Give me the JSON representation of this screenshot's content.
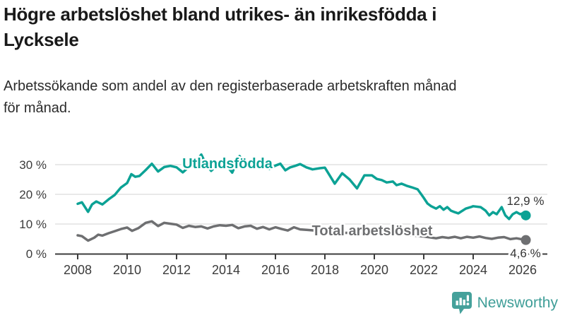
{
  "chart_data": {
    "type": "line",
    "title": "Högre arbetslöshet bland utrikes- än inrikesfödda i Lycksele",
    "title_lines": [
      "Högre arbetslöshet bland utrikes- än inrikesfödda i",
      "Lycksele"
    ],
    "subtitle": "Arbetssökande som andel av den registerbaserade arbetskraften månad för månad.",
    "subtitle_lines": [
      "Arbetssökande som andel av den registerbaserade arbetskraften månad",
      "för månad."
    ],
    "unit": "%",
    "xlim": [
      2007.1,
      2027.0
    ],
    "ylim": [
      0,
      35
    ],
    "grid": "horizontal",
    "grid_color": "#dcdcdc",
    "axis_color": "#3c3c3c",
    "x_ticks": [
      {
        "value": 2008,
        "label": "2008"
      },
      {
        "value": 2010,
        "label": "2010"
      },
      {
        "value": 2012,
        "label": "2012"
      },
      {
        "value": 2014,
        "label": "2014"
      },
      {
        "value": 2016,
        "label": "2016"
      },
      {
        "value": 2018,
        "label": "2018"
      },
      {
        "value": 2020,
        "label": "2020"
      },
      {
        "value": 2022,
        "label": "2022"
      },
      {
        "value": 2024,
        "label": "2024"
      },
      {
        "value": 2026,
        "label": "2026"
      }
    ],
    "y_ticks": [
      {
        "value": 0,
        "label": "0 %"
      },
      {
        "value": 10,
        "label": "10 %"
      },
      {
        "value": 20,
        "label": "20 %"
      },
      {
        "value": 30,
        "label": "30 %"
      }
    ],
    "series": [
      {
        "name": "Utlandsfödda",
        "color": "#0ca295",
        "end_value": 12.9,
        "end_label": "12,9 %",
        "points": [
          [
            2008.0,
            16.8
          ],
          [
            2008.17,
            17.3
          ],
          [
            2008.42,
            14.1
          ],
          [
            2008.58,
            16.6
          ],
          [
            2008.75,
            17.6
          ],
          [
            2009.0,
            16.6
          ],
          [
            2009.25,
            18.3
          ],
          [
            2009.5,
            19.8
          ],
          [
            2009.75,
            22.3
          ],
          [
            2010.0,
            23.8
          ],
          [
            2010.17,
            26.8
          ],
          [
            2010.33,
            25.9
          ],
          [
            2010.5,
            26.2
          ],
          [
            2010.75,
            28.2
          ],
          [
            2011.0,
            30.3
          ],
          [
            2011.25,
            27.7
          ],
          [
            2011.5,
            29.2
          ],
          [
            2011.75,
            29.6
          ],
          [
            2012.0,
            29.1
          ],
          [
            2012.25,
            27.4
          ],
          [
            2012.5,
            29.2
          ],
          [
            2012.75,
            30.6
          ],
          [
            2013.0,
            33.4
          ],
          [
            2013.2,
            30.0
          ],
          [
            2013.4,
            27.9
          ],
          [
            2013.6,
            29.6
          ],
          [
            2013.8,
            30.2
          ],
          [
            2014.0,
            30.0
          ],
          [
            2014.25,
            27.3
          ],
          [
            2014.55,
            32.9
          ],
          [
            2014.7,
            30.8
          ],
          [
            2014.85,
            29.4
          ],
          [
            2015.0,
            30.1
          ],
          [
            2015.25,
            30.6
          ],
          [
            2015.5,
            29.4
          ],
          [
            2015.75,
            28.6
          ],
          [
            2016.0,
            29.7
          ],
          [
            2016.2,
            30.3
          ],
          [
            2016.4,
            28.1
          ],
          [
            2016.6,
            29.1
          ],
          [
            2016.8,
            29.6
          ],
          [
            2017.0,
            30.2
          ],
          [
            2017.25,
            29.1
          ],
          [
            2017.5,
            28.4
          ],
          [
            2017.8,
            28.8
          ],
          [
            2018.0,
            29.0
          ],
          [
            2018.4,
            23.6
          ],
          [
            2018.7,
            27.1
          ],
          [
            2019.0,
            25.0
          ],
          [
            2019.3,
            22.0
          ],
          [
            2019.6,
            26.4
          ],
          [
            2019.9,
            26.4
          ],
          [
            2020.1,
            25.2
          ],
          [
            2020.3,
            24.8
          ],
          [
            2020.5,
            24.0
          ],
          [
            2020.75,
            24.3
          ],
          [
            2020.9,
            23.1
          ],
          [
            2021.1,
            23.6
          ],
          [
            2021.3,
            22.9
          ],
          [
            2021.5,
            22.4
          ],
          [
            2021.75,
            21.7
          ],
          [
            2021.9,
            20.0
          ],
          [
            2022.0,
            18.8
          ],
          [
            2022.15,
            16.9
          ],
          [
            2022.3,
            16.0
          ],
          [
            2022.5,
            15.2
          ],
          [
            2022.65,
            16.0
          ],
          [
            2022.8,
            14.8
          ],
          [
            2022.95,
            15.7
          ],
          [
            2023.1,
            14.5
          ],
          [
            2023.25,
            14.0
          ],
          [
            2023.4,
            13.6
          ],
          [
            2023.7,
            15.2
          ],
          [
            2023.9,
            15.7
          ],
          [
            2024.0,
            16.0
          ],
          [
            2024.3,
            15.7
          ],
          [
            2024.5,
            14.5
          ],
          [
            2024.65,
            12.9
          ],
          [
            2024.8,
            14.0
          ],
          [
            2024.95,
            13.3
          ],
          [
            2025.15,
            15.7
          ],
          [
            2025.3,
            12.9
          ],
          [
            2025.45,
            11.7
          ],
          [
            2025.6,
            13.3
          ],
          [
            2025.75,
            14.0
          ],
          [
            2025.9,
            13.3
          ],
          [
            2026.0,
            13.6
          ],
          [
            2026.13,
            12.9
          ]
        ]
      },
      {
        "name": "Total arbetslöshet",
        "color": "#6e6f71",
        "end_value": 4.6,
        "end_label": "4,6 %",
        "points": [
          [
            2008.0,
            6.2
          ],
          [
            2008.17,
            5.9
          ],
          [
            2008.42,
            4.4
          ],
          [
            2008.67,
            5.4
          ],
          [
            2008.83,
            6.4
          ],
          [
            2009.0,
            6.1
          ],
          [
            2009.25,
            6.9
          ],
          [
            2009.5,
            7.6
          ],
          [
            2009.75,
            8.3
          ],
          [
            2010.0,
            8.8
          ],
          [
            2010.2,
            7.7
          ],
          [
            2010.45,
            8.6
          ],
          [
            2010.75,
            10.4
          ],
          [
            2011.0,
            10.9
          ],
          [
            2011.25,
            9.3
          ],
          [
            2011.5,
            10.4
          ],
          [
            2011.75,
            10.1
          ],
          [
            2012.0,
            9.8
          ],
          [
            2012.25,
            8.7
          ],
          [
            2012.5,
            9.4
          ],
          [
            2012.75,
            9.0
          ],
          [
            2013.0,
            9.2
          ],
          [
            2013.25,
            8.5
          ],
          [
            2013.5,
            9.2
          ],
          [
            2013.75,
            9.6
          ],
          [
            2014.0,
            9.4
          ],
          [
            2014.25,
            9.7
          ],
          [
            2014.5,
            8.6
          ],
          [
            2014.75,
            9.2
          ],
          [
            2015.0,
            9.4
          ],
          [
            2015.25,
            8.4
          ],
          [
            2015.5,
            9.0
          ],
          [
            2015.75,
            8.2
          ],
          [
            2016.0,
            8.9
          ],
          [
            2016.25,
            8.3
          ],
          [
            2016.5,
            7.8
          ],
          [
            2016.75,
            8.9
          ],
          [
            2017.0,
            8.2
          ],
          [
            2017.3,
            8.0
          ],
          [
            2017.6,
            7.8
          ],
          [
            2018.0,
            7.6
          ],
          [
            2018.5,
            7.1
          ],
          [
            2019.0,
            7.0
          ],
          [
            2019.5,
            6.8
          ],
          [
            2020.0,
            7.4
          ],
          [
            2020.5,
            7.2
          ],
          [
            2021.0,
            6.8
          ],
          [
            2021.5,
            6.2
          ],
          [
            2022.0,
            5.8
          ],
          [
            2022.5,
            5.2
          ],
          [
            2022.75,
            5.6
          ],
          [
            2023.0,
            5.3
          ],
          [
            2023.25,
            5.7
          ],
          [
            2023.5,
            5.2
          ],
          [
            2023.75,
            5.7
          ],
          [
            2024.0,
            5.4
          ],
          [
            2024.25,
            5.8
          ],
          [
            2024.5,
            5.3
          ],
          [
            2024.75,
            5.0
          ],
          [
            2025.0,
            5.4
          ],
          [
            2025.25,
            5.6
          ],
          [
            2025.5,
            4.9
          ],
          [
            2025.75,
            5.2
          ],
          [
            2026.0,
            4.8
          ],
          [
            2026.13,
            4.6
          ]
        ]
      }
    ]
  },
  "branding": {
    "logo_text": "Newsworthy",
    "logo_color": "#3f9e98",
    "logo_icon": "bar-chart-speech-bubble"
  }
}
